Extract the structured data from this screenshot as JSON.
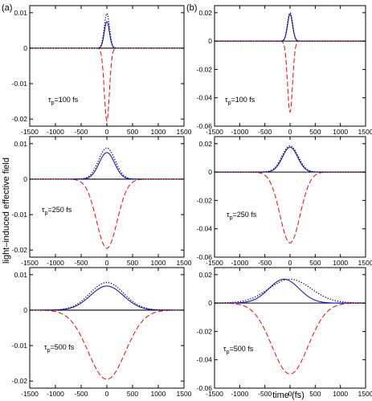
{
  "figure": {
    "ylabel": "light–induced effective field",
    "xlabel": "time (fs)",
    "column_labels": [
      "(a)",
      "(b)"
    ],
    "colors": {
      "blue_solid": "#0000ff",
      "red_dashed": "#ff0000",
      "black_dotted": "#000000",
      "zero_line": "#000000"
    }
  },
  "chart_data": [
    {
      "type": "line",
      "panel": "a",
      "row": 1,
      "annotation": {
        "main": "τ",
        "sub": "p",
        "rest": "=100 fs"
      },
      "xlim": [
        -1500,
        1500
      ],
      "ylim": [
        -0.022,
        0.012
      ],
      "x_ticks": [
        -1500,
        -1000,
        -500,
        0,
        500,
        1000,
        1500
      ],
      "y_ticks": [
        -0.02,
        -0.01,
        0,
        0.01
      ],
      "y_tick_labels": [
        "-0.02",
        "-0.01",
        "0",
        "0.01"
      ],
      "grid": false,
      "series": [
        {
          "style": "solid",
          "color": "#0000ff",
          "shape": "gaussian",
          "amplitude": 0.0075,
          "center": 0,
          "sigma": 50
        },
        {
          "style": "dashed",
          "color": "#ff0000",
          "shape": "gaussian",
          "amplitude": -0.0205,
          "center": 0,
          "sigma": 50
        },
        {
          "style": "dotted",
          "color": "#000000",
          "shape": "gaussian",
          "amplitude": 0.0098,
          "center": 0,
          "sigma": 50
        }
      ]
    },
    {
      "type": "line",
      "panel": "b",
      "row": 1,
      "annotation": {
        "main": "τ",
        "sub": "p",
        "rest": "=100 fs"
      },
      "xlim": [
        -1500,
        1500
      ],
      "ylim": [
        -0.06,
        0.025
      ],
      "x_ticks": [
        -1500,
        -1000,
        -500,
        0,
        500,
        1000,
        1500
      ],
      "y_ticks": [
        -0.06,
        -0.04,
        -0.02,
        0,
        0.02
      ],
      "y_tick_labels": [
        "-0.06",
        "-0.04",
        "-0.02",
        "0",
        "0.02"
      ],
      "grid": false,
      "series": [
        {
          "style": "solid",
          "color": "#0000ff",
          "shape": "gaussian",
          "amplitude": 0.019,
          "center": 0,
          "sigma": 50
        },
        {
          "style": "dashed",
          "color": "#ff0000",
          "shape": "gaussian",
          "amplitude": -0.05,
          "center": 0,
          "sigma": 50
        },
        {
          "style": "dotted",
          "color": "#000000",
          "shape": "gaussian",
          "amplitude": 0.02,
          "center": 0,
          "sigma": 50
        }
      ]
    },
    {
      "type": "line",
      "panel": "a",
      "row": 2,
      "annotation": {
        "main": "τ",
        "sub": "p",
        "rest": "=250 fs"
      },
      "xlim": [
        -1500,
        1500
      ],
      "ylim": [
        -0.022,
        0.012
      ],
      "x_ticks": [
        -1500,
        -1000,
        -500,
        0,
        500,
        1000,
        1500
      ],
      "y_ticks": [
        -0.02,
        -0.01,
        0,
        0.01
      ],
      "y_tick_labels": [
        "-0.02",
        "-0.01",
        "0",
        "0.01"
      ],
      "grid": false,
      "series": [
        {
          "style": "solid",
          "color": "#0000ff",
          "shape": "gaussian",
          "amplitude": 0.0075,
          "center": 0,
          "sigma": 150
        },
        {
          "style": "dashed",
          "color": "#ff0000",
          "shape": "gaussian",
          "amplitude": -0.0195,
          "center": 0,
          "sigma": 200
        },
        {
          "style": "dotted",
          "color": "#000000",
          "shape": "gaussian",
          "amplitude": 0.0088,
          "center": 0,
          "sigma": 160
        }
      ]
    },
    {
      "type": "line",
      "panel": "b",
      "row": 2,
      "annotation": {
        "main": "τ",
        "sub": "p",
        "rest": "=250 fs"
      },
      "xlim": [
        -1500,
        1500
      ],
      "ylim": [
        -0.06,
        0.025
      ],
      "x_ticks": [
        -1500,
        -1000,
        -500,
        0,
        500,
        1000,
        1500
      ],
      "y_ticks": [
        -0.06,
        -0.04,
        -0.02,
        0,
        0.02
      ],
      "y_tick_labels": [
        "-0.06",
        "-0.04",
        "-0.02",
        "0",
        "0.02"
      ],
      "grid": false,
      "series": [
        {
          "style": "solid",
          "color": "#0000ff",
          "shape": "gaussian",
          "amplitude": 0.0175,
          "center": 0,
          "sigma": 150
        },
        {
          "style": "dashed",
          "color": "#ff0000",
          "shape": "gaussian",
          "amplitude": -0.05,
          "center": 0,
          "sigma": 200
        },
        {
          "style": "dotted",
          "color": "#000000",
          "shape": "gaussian",
          "amplitude": 0.0185,
          "center": 0,
          "sigma": 160
        }
      ]
    },
    {
      "type": "line",
      "panel": "a",
      "row": 3,
      "annotation": {
        "main": "τ",
        "sub": "p",
        "rest": "=500 fs"
      },
      "xlim": [
        -1500,
        1500
      ],
      "ylim": [
        -0.022,
        0.012
      ],
      "x_ticks": [
        -1500,
        -1000,
        -500,
        0,
        500,
        1000,
        1500
      ],
      "y_ticks": [
        -0.02,
        -0.01,
        0,
        0.01
      ],
      "y_tick_labels": [
        "-0.02",
        "-0.01",
        "0",
        "0.01"
      ],
      "grid": false,
      "series": [
        {
          "style": "solid",
          "color": "#0000ff",
          "shape": "gaussian",
          "amplitude": 0.0068,
          "center": 0,
          "sigma": 320
        },
        {
          "style": "dashed",
          "color": "#ff0000",
          "shape": "gaussian",
          "amplitude": -0.0195,
          "center": 0,
          "sigma": 360
        },
        {
          "style": "dotted",
          "color": "#000000",
          "shape": "gaussian",
          "amplitude": 0.0078,
          "center": 0,
          "sigma": 330
        }
      ]
    },
    {
      "type": "line",
      "panel": "b",
      "row": 3,
      "annotation": {
        "main": "τ",
        "sub": "p",
        "rest": "=500 fs"
      },
      "xlim": [
        -1500,
        1500
      ],
      "ylim": [
        -0.06,
        0.025
      ],
      "x_ticks": [
        -1500,
        -1000,
        -500,
        0,
        500,
        1000,
        1500
      ],
      "y_ticks": [
        -0.06,
        -0.04,
        -0.02,
        0,
        0.02
      ],
      "y_tick_labels": [
        "-0.06",
        "-0.04",
        "-0.02",
        "0",
        "0.02"
      ],
      "grid": false,
      "series": [
        {
          "style": "solid",
          "color": "#0000ff",
          "shape": "gaussian",
          "amplitude": 0.0168,
          "center": -120,
          "sigma": 300
        },
        {
          "style": "dashed",
          "color": "#ff0000",
          "shape": "gaussian",
          "amplitude": -0.05,
          "center": 0,
          "sigma": 360
        },
        {
          "style": "dotted",
          "color": "#000000",
          "shape": "gaussian",
          "amplitude": 0.0168,
          "center": 0,
          "sigma": 420
        }
      ]
    }
  ]
}
